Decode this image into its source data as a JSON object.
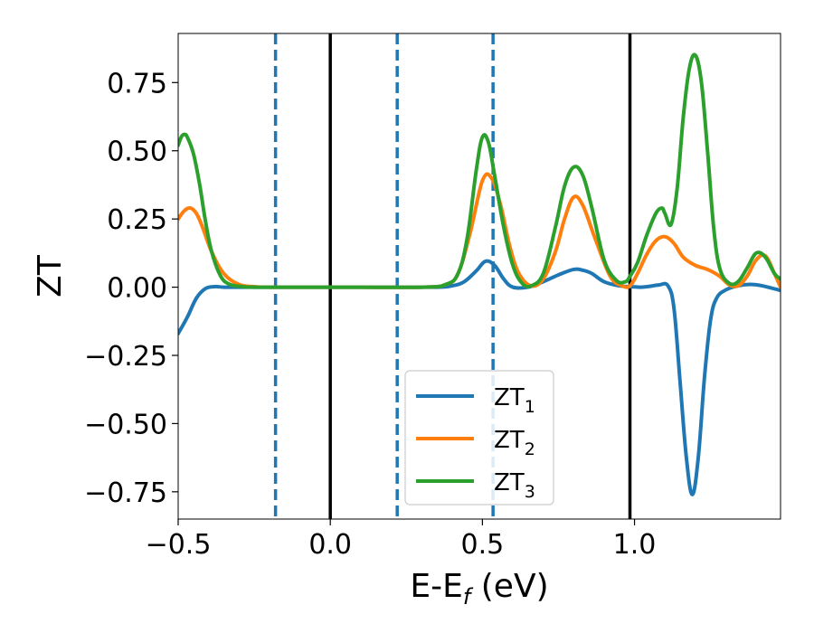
{
  "chart_data": {
    "type": "line",
    "xlabel": {
      "main": "E-E",
      "sub": "f",
      "unit": " (eV)"
    },
    "ylabel": "ZT",
    "xlim": [
      -0.5,
      1.48
    ],
    "ylim": [
      -0.85,
      0.93
    ],
    "xticks": [
      -0.5,
      0.0,
      0.5,
      1.0
    ],
    "xtick_labels": [
      "−0.5",
      "0.0",
      "0.5",
      "1.0"
    ],
    "yticks": [
      0.75,
      0.5,
      0.25,
      0.0,
      -0.25,
      -0.5,
      -0.75
    ],
    "ytick_labels": [
      "0.75",
      "0.50",
      "0.25",
      "0.00",
      "−0.25",
      "−0.50",
      "−0.75"
    ],
    "grid": false,
    "legend_position": "lower-center",
    "vertical_lines": [
      {
        "x": -0.18,
        "style": "dashed",
        "color": "#1f77b4"
      },
      {
        "x": 0.0,
        "style": "solid",
        "color": "#000000"
      },
      {
        "x": 0.22,
        "style": "dashed",
        "color": "#1f77b4"
      },
      {
        "x": 0.535,
        "style": "dashed",
        "color": "#1f77b4"
      },
      {
        "x": 0.985,
        "style": "solid",
        "color": "#000000"
      }
    ],
    "series": [
      {
        "name": "ZT",
        "sub": "1",
        "color": "#1f77b4",
        "x": [
          -0.5,
          -0.47,
          -0.44,
          -0.41,
          -0.38,
          -0.35,
          -0.3,
          -0.2,
          0.0,
          0.2,
          0.35,
          0.4,
          0.44,
          0.48,
          0.51,
          0.54,
          0.57,
          0.6,
          0.65,
          0.7,
          0.75,
          0.8,
          0.83,
          0.86,
          0.9,
          0.95,
          0.985,
          1.02,
          1.05,
          1.08,
          1.11,
          1.13,
          1.15,
          1.17,
          1.19,
          1.21,
          1.23,
          1.25,
          1.27,
          1.3,
          1.34,
          1.38,
          1.42,
          1.48
        ],
        "y": [
          -0.17,
          -0.11,
          -0.04,
          -0.005,
          0.002,
          0.0,
          0.0,
          0.0,
          0.0,
          0.0,
          0.0,
          0.005,
          0.02,
          0.06,
          0.095,
          0.08,
          0.03,
          0.0,
          0.0,
          0.02,
          0.045,
          0.065,
          0.062,
          0.05,
          0.02,
          0.005,
          0.002,
          0.0,
          0.003,
          0.008,
          0.005,
          -0.08,
          -0.35,
          -0.62,
          -0.76,
          -0.62,
          -0.33,
          -0.12,
          -0.04,
          -0.01,
          0.005,
          0.01,
          0.005,
          -0.012
        ]
      },
      {
        "name": "ZT",
        "sub": "2",
        "color": "#ff7f0e",
        "x": [
          -0.5,
          -0.48,
          -0.46,
          -0.44,
          -0.42,
          -0.39,
          -0.35,
          -0.3,
          -0.25,
          -0.2,
          0.0,
          0.3,
          0.38,
          0.42,
          0.46,
          0.5,
          0.53,
          0.56,
          0.59,
          0.62,
          0.66,
          0.7,
          0.74,
          0.77,
          0.8,
          0.83,
          0.87,
          0.92,
          0.96,
          0.985,
          1.01,
          1.04,
          1.07,
          1.1,
          1.13,
          1.16,
          1.2,
          1.24,
          1.28,
          1.31,
          1.34,
          1.37,
          1.4,
          1.43,
          1.46,
          1.48
        ],
        "y": [
          0.25,
          0.28,
          0.29,
          0.27,
          0.22,
          0.13,
          0.05,
          0.01,
          0.002,
          0.0,
          0.0,
          0.0,
          0.01,
          0.05,
          0.2,
          0.39,
          0.4,
          0.3,
          0.15,
          0.05,
          0.005,
          0.03,
          0.13,
          0.25,
          0.33,
          0.3,
          0.18,
          0.04,
          0.005,
          0.005,
          0.05,
          0.12,
          0.17,
          0.185,
          0.16,
          0.11,
          0.08,
          0.065,
          0.04,
          0.01,
          0.005,
          0.04,
          0.1,
          0.115,
          0.05,
          0.0
        ]
      },
      {
        "name": "ZT",
        "sub": "3",
        "color": "#2ca02c",
        "x": [
          -0.5,
          -0.49,
          -0.48,
          -0.47,
          -0.45,
          -0.43,
          -0.41,
          -0.39,
          -0.36,
          -0.33,
          -0.29,
          -0.25,
          -0.2,
          0.0,
          0.3,
          0.38,
          0.42,
          0.45,
          0.48,
          0.5,
          0.52,
          0.54,
          0.57,
          0.6,
          0.63,
          0.66,
          0.7,
          0.74,
          0.77,
          0.8,
          0.83,
          0.86,
          0.9,
          0.94,
          0.97,
          0.985,
          1.01,
          1.04,
          1.07,
          1.09,
          1.1,
          1.12,
          1.14,
          1.16,
          1.18,
          1.2,
          1.22,
          1.24,
          1.26,
          1.28,
          1.31,
          1.34,
          1.37,
          1.4,
          1.43,
          1.46,
          1.48
        ],
        "y": [
          0.52,
          0.55,
          0.56,
          0.55,
          0.49,
          0.38,
          0.24,
          0.13,
          0.04,
          0.01,
          0.002,
          0.0,
          0.0,
          0.0,
          0.0,
          0.01,
          0.05,
          0.18,
          0.43,
          0.55,
          0.53,
          0.41,
          0.22,
          0.08,
          0.015,
          0.005,
          0.05,
          0.22,
          0.37,
          0.44,
          0.41,
          0.29,
          0.1,
          0.025,
          0.02,
          0.04,
          0.09,
          0.19,
          0.27,
          0.29,
          0.27,
          0.23,
          0.36,
          0.62,
          0.8,
          0.85,
          0.75,
          0.5,
          0.22,
          0.07,
          0.015,
          0.02,
          0.07,
          0.125,
          0.11,
          0.05,
          0.03
        ]
      }
    ]
  }
}
